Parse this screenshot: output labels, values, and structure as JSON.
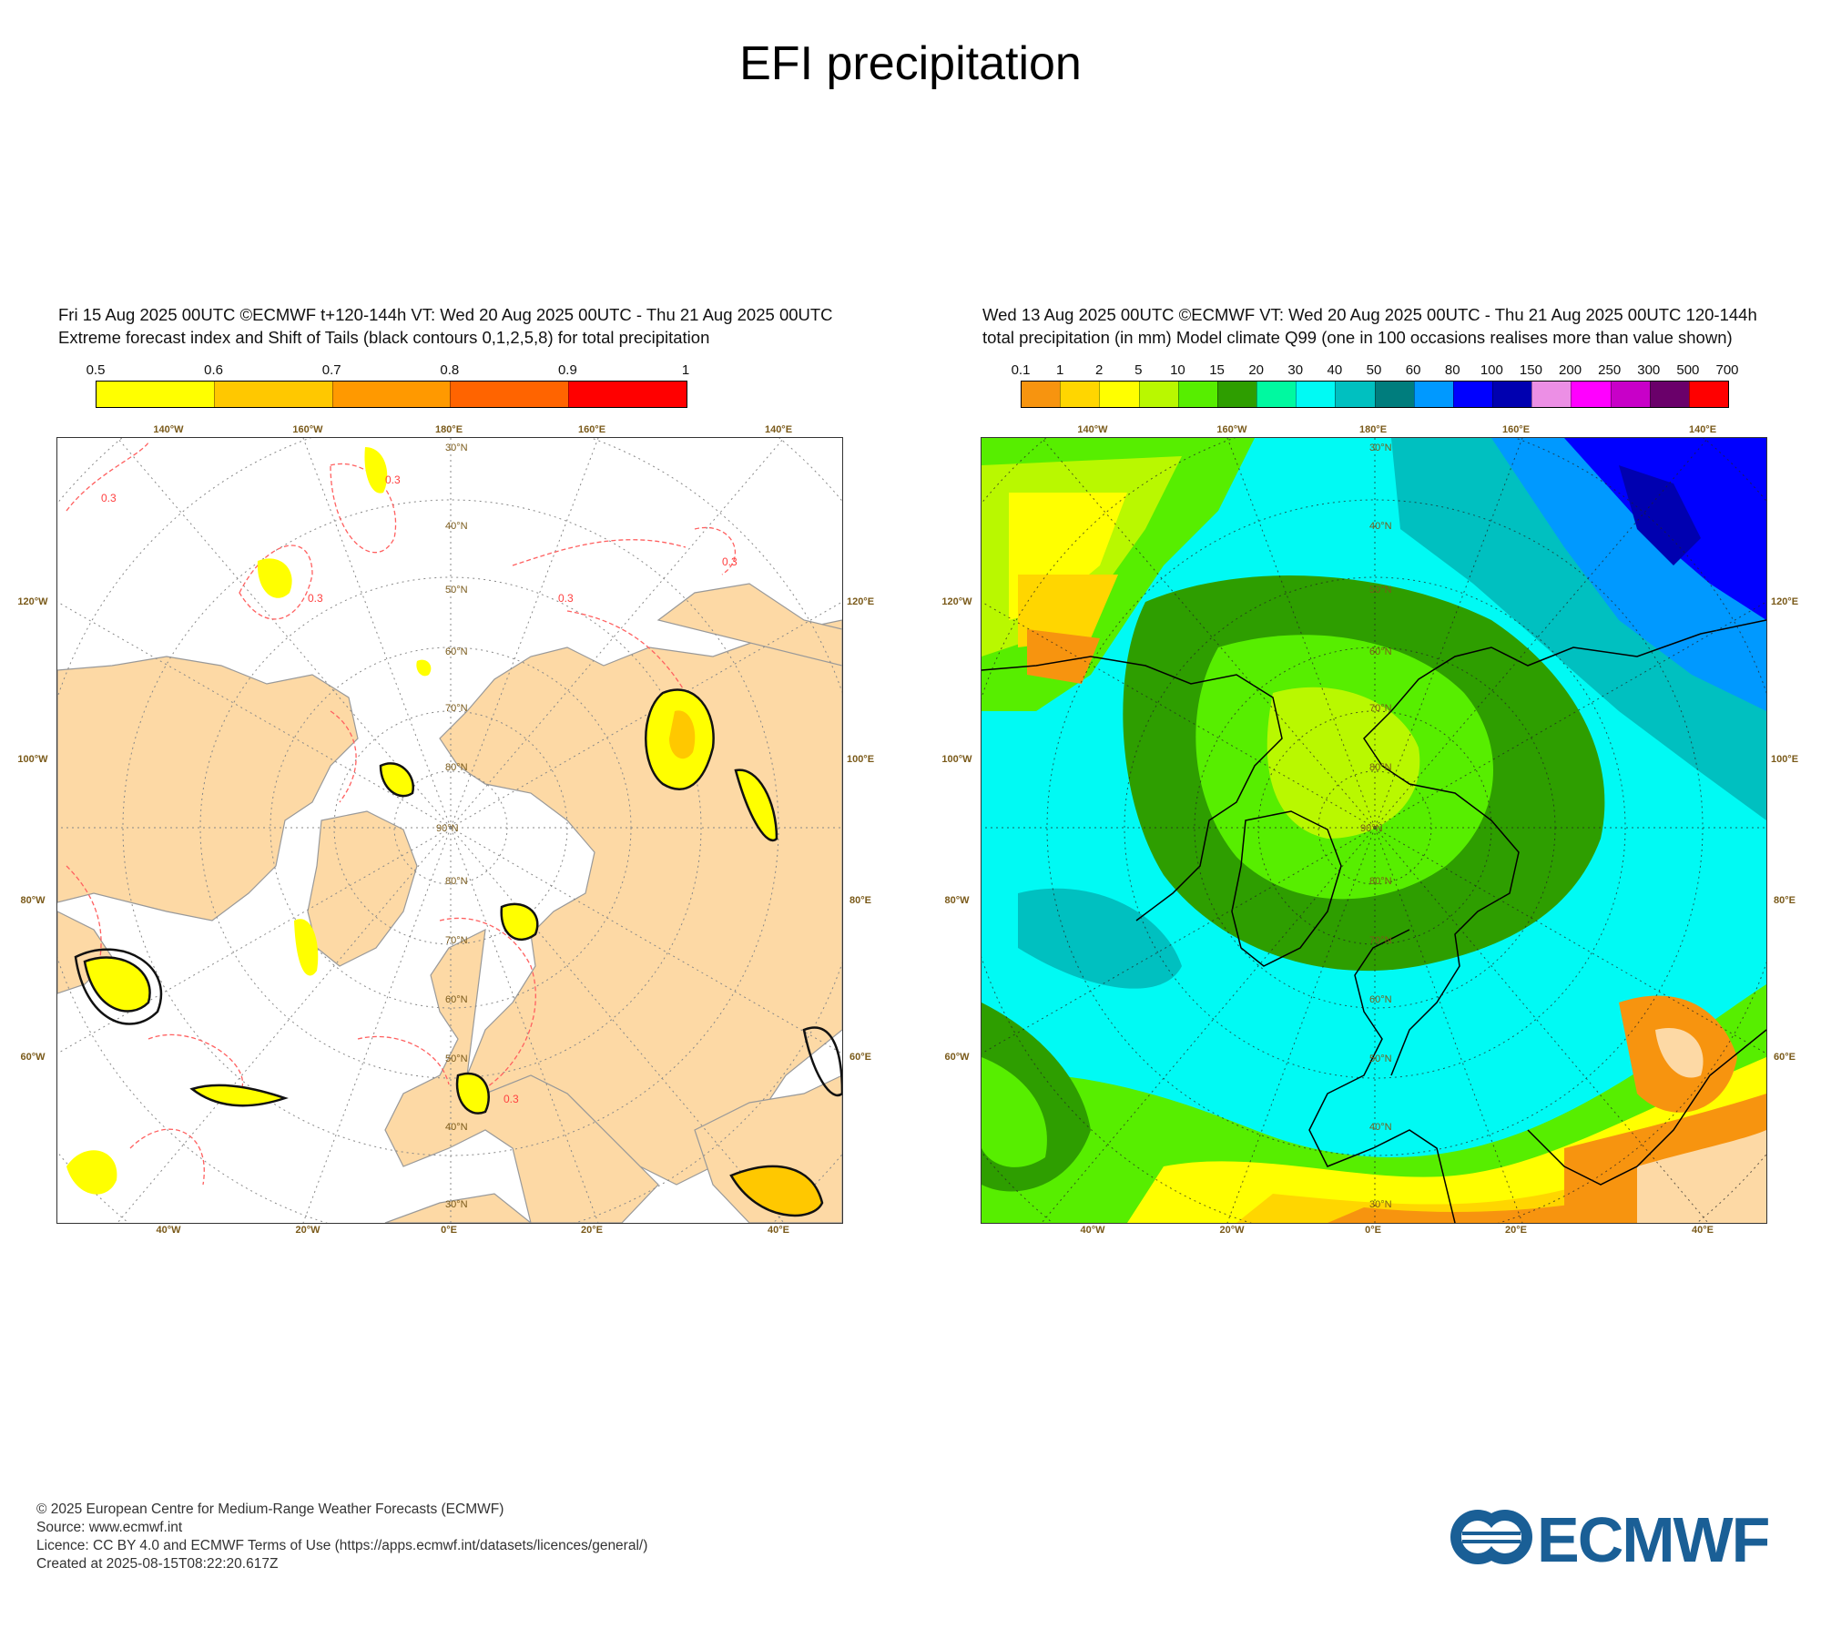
{
  "page": {
    "title": "EFI precipitation"
  },
  "left_panel": {
    "header_line1": "Fri 15 Aug 2025 00UTC ©ECMWF t+120-144h  VT: Wed 20 Aug 2025 00UTC - Thu 21 Aug 2025 00UTC",
    "header_line2": "Extreme forecast index and Shift of Tails (black contours 0,1,2,5,8) for total precipitation",
    "colorbar": {
      "labels": [
        "0.5",
        "0.6",
        "0.7",
        "0.8",
        "0.9",
        "1"
      ],
      "colors": [
        "#ffff00",
        "#ffc800",
        "#ff9900",
        "#ff6400",
        "#ff0000"
      ]
    },
    "map": {
      "ocean_color": "#ffffff",
      "land_color": "#fdd9a5",
      "efi_contour_label": "0.3",
      "lat_labels": [
        "30°N",
        "40°N",
        "50°N",
        "60°N",
        "70°N",
        "80°N"
      ],
      "pole_label": "90°N"
    }
  },
  "right_panel": {
    "header_line1": "Wed 13 Aug 2025 00UTC ©ECMWF VT: Wed 20 Aug 2025 00UTC - Thu 21 Aug 2025 00UTC   120-144h",
    "header_line2": "total precipitation (in mm)  Model climate Q99 (one in 100 occasions realises more than value shown)",
    "colorbar": {
      "labels": [
        "0.1",
        "1",
        "2",
        "5",
        "10",
        "15",
        "20",
        "30",
        "40",
        "50",
        "60",
        "80",
        "100",
        "150",
        "200",
        "250",
        "300",
        "500",
        "700"
      ],
      "colors": [
        "#f7940f",
        "#ffd600",
        "#ffff00",
        "#b9f800",
        "#57ee00",
        "#2e9e00",
        "#00f9a0",
        "#00faf4",
        "#00c0c0",
        "#007d7d",
        "#0099ff",
        "#0000ff",
        "#0000b0",
        "#ec8fe5",
        "#ff00ff",
        "#c800c8",
        "#6a006a",
        "#ff0000"
      ]
    },
    "map": {
      "lat_labels": [
        "30°N",
        "40°N",
        "50°N",
        "60°N",
        "70°N",
        "80°N"
      ],
      "pole_label": "90°N"
    }
  },
  "map_axes": {
    "top_labels": [
      "140°W",
      "160°W",
      "180°E",
      "160°E",
      "140°E"
    ],
    "bottom_labels": [
      "40°W",
      "20°W",
      "0°E",
      "20°E",
      "40°E"
    ],
    "left_labels": [
      "120°W",
      "100°W",
      "80°W",
      "60°W"
    ],
    "right_labels": [
      "120°E",
      "100°E",
      "80°E",
      "60°E"
    ]
  },
  "footer": {
    "line1": "© 2025 European Centre for Medium-Range Weather Forecasts (ECMWF)",
    "line2": "Source: www.ecmwf.int",
    "line3": "Licence: CC BY 4.0 and ECMWF Terms of Use (https://apps.ecmwf.int/datasets/licences/general/)",
    "line4": "Created at 2025-08-15T08:22:20.617Z"
  },
  "logo": {
    "text": "ECMWF",
    "color": "#1a5f96"
  }
}
